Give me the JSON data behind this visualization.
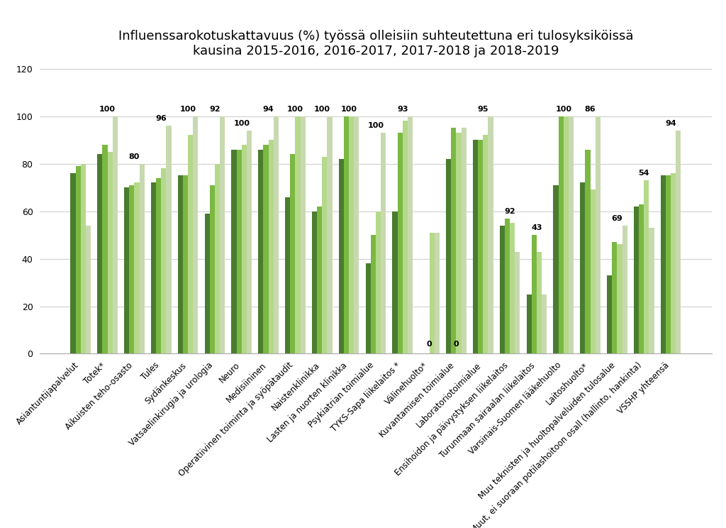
{
  "title": "Influenssarokotuskattavuus (%) työssä olleisiin suhteutettuna eri tulosyksiköissä\nkausina 2015-2016, 2016-2017, 2017-2018 ja 2018-2019",
  "categories": [
    "Asiantuntijapalvelut",
    "Totek*",
    "Aikuisten teho-osasto",
    "Tules",
    "Sydänkeskus",
    "Vatsaelinkirugia ja urologia",
    "Neuro",
    "Medisiininen",
    "Operatiivinen toiminta ja syöpätaudit",
    "Naistenklinikka",
    "Lasten ja nuorten klinikka",
    "Psykiatrian toimialue",
    "TYKS-Sapa liikelaitos *",
    "Välinehuolto*",
    "Kuvantamisen toimialue",
    "Laboratoriotoimialue",
    "Ensihoidon ja päivystyksen liikelaitos",
    "Turunmaan sairaalan liikelaitos",
    "Varsinais-Suomen lääkehuolto",
    "Laitoshuolto*",
    "Muu teknisten ja huoltopalveluiden tulosalue",
    "Muut, ei suoraan potilashoitoon osall (hallinto, hankinta)",
    "VSSHP yhteensä"
  ],
  "series": [
    {
      "name": "2015-2016",
      "color": "#4a7c2f",
      "values": [
        76,
        84,
        70,
        72,
        75,
        59,
        86,
        86,
        66,
        60,
        82,
        38,
        60,
        0,
        82,
        90,
        54,
        25,
        71,
        72,
        33,
        62,
        75
      ]
    },
    {
      "name": "2016-2017",
      "color": "#7ab842",
      "values": [
        79,
        88,
        71,
        74,
        75,
        71,
        86,
        88,
        84,
        62,
        100,
        50,
        93,
        0,
        95,
        90,
        57,
        50,
        100,
        86,
        47,
        63,
        75
      ]
    },
    {
      "name": "2017-2018",
      "color": "#b5d98a",
      "values": [
        80,
        85,
        72,
        78,
        92,
        80,
        88,
        90,
        100,
        83,
        100,
        60,
        98,
        51,
        93,
        92,
        55,
        43,
        100,
        69,
        46,
        73,
        76
      ]
    },
    {
      "name": "2018-2019",
      "color": "#c8d9b0",
      "values": [
        54,
        100,
        80,
        96,
        100,
        100,
        94,
        100,
        100,
        100,
        100,
        93,
        100,
        51,
        95,
        100,
        43,
        25,
        100,
        100,
        54,
        53,
        94
      ]
    }
  ],
  "annotations": [
    null,
    100,
    80,
    96,
    100,
    92,
    100,
    94,
    100,
    100,
    100,
    100,
    93,
    0,
    0,
    95,
    92,
    43,
    100,
    86,
    69,
    54,
    94
  ],
  "annot_extra": {
    "13": "0",
    "14": "0"
  },
  "ylim": [
    0,
    120
  ],
  "yticks": [
    0,
    20,
    40,
    60,
    80,
    100,
    120
  ],
  "background_color": "#ffffff",
  "grid_color": "#d0d0d0",
  "title_fontsize": 13,
  "tick_fontsize": 8.5
}
